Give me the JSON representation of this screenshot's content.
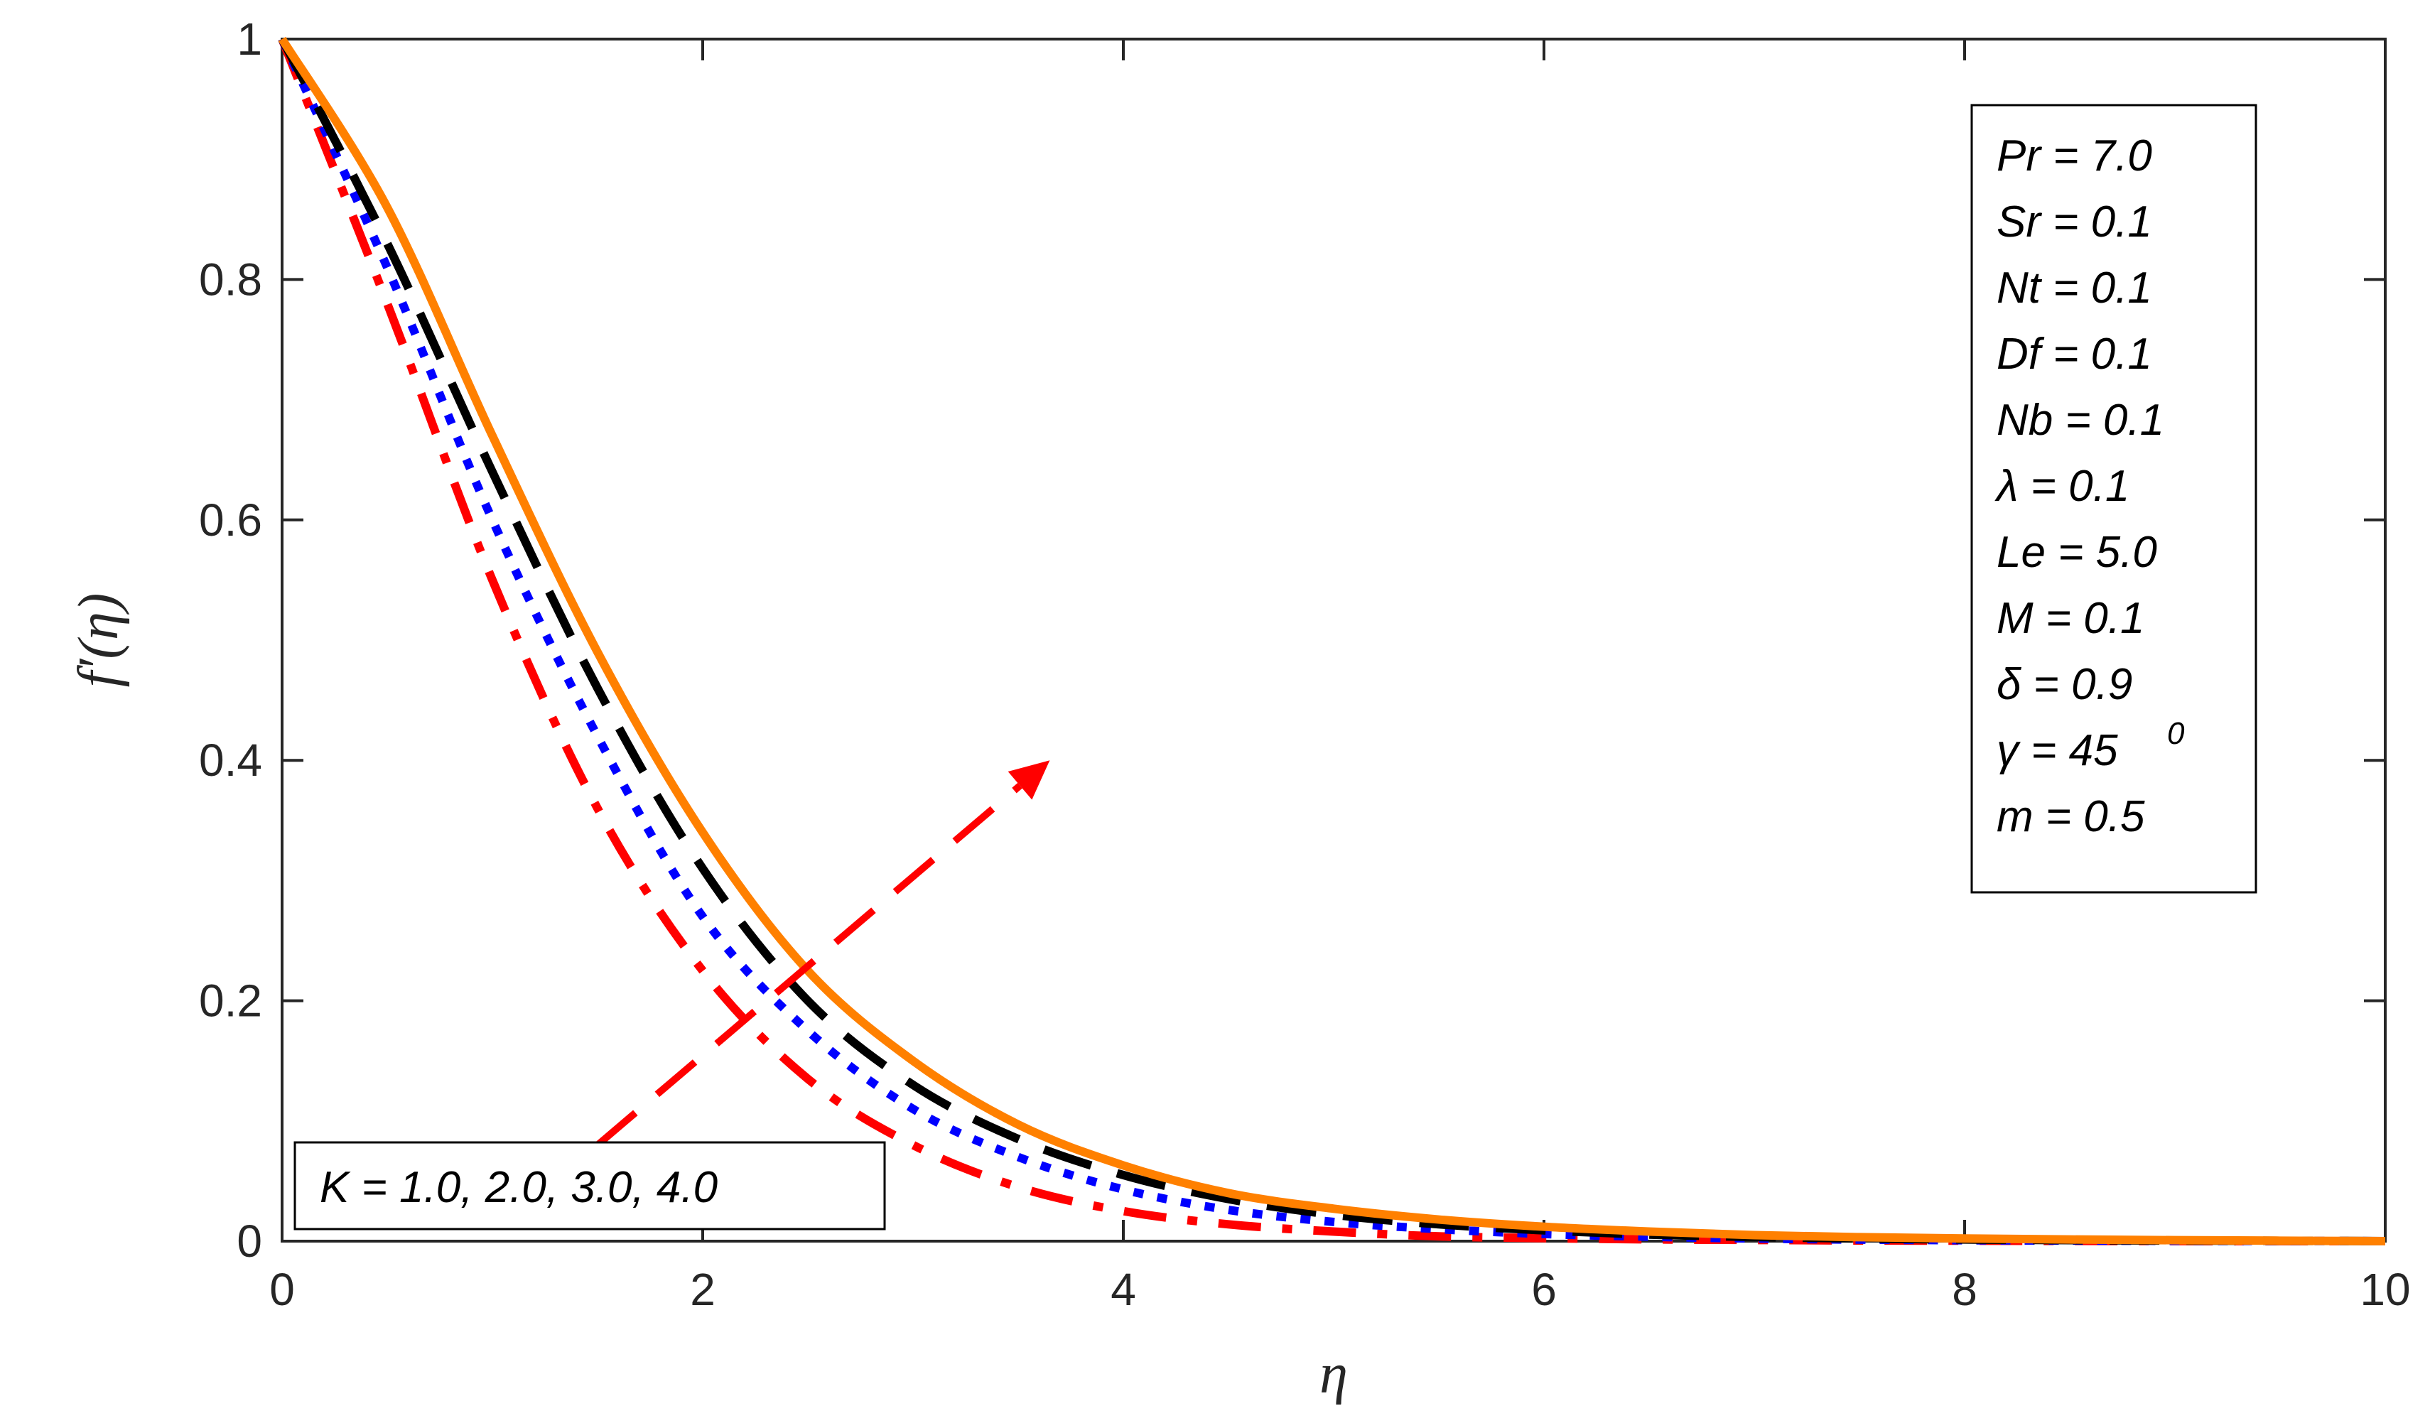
{
  "chart_data": {
    "type": "line",
    "xlabel": "η",
    "ylabel": "f′(η)",
    "xlim": [
      0,
      10
    ],
    "ylim": [
      0,
      1
    ],
    "xticks": [
      "0",
      "2",
      "4",
      "6",
      "8",
      "10"
    ],
    "yticks": [
      "0",
      "0.2",
      "0.4",
      "0.6",
      "0.8",
      "1"
    ],
    "grid": false,
    "x": [
      0,
      0.5,
      1,
      1.5,
      2,
      2.5,
      3,
      3.5,
      4,
      4.5,
      5,
      5.5,
      6,
      6.5,
      7,
      7.5,
      8,
      8.5,
      9,
      9.5,
      10
    ],
    "series": [
      {
        "color": "#ff0000",
        "dash": "dashdot",
        "values": [
          1.0,
          0.78,
          0.55,
          0.36,
          0.225,
          0.135,
          0.08,
          0.045,
          0.025,
          0.014,
          0.008,
          0.004,
          0.0025,
          0.0015,
          0.001,
          0.0006,
          0.0004,
          0.0002,
          0.0001,
          5e-05,
          0.0
        ]
      },
      {
        "color": "#0000ff",
        "dash": "dotted",
        "values": [
          1.0,
          0.81,
          0.6,
          0.42,
          0.27,
          0.175,
          0.11,
          0.07,
          0.043,
          0.026,
          0.016,
          0.01,
          0.006,
          0.0037,
          0.0022,
          0.0013,
          0.0008,
          0.0005,
          0.0003,
          0.0002,
          0.0
        ]
      },
      {
        "color": "#000000",
        "dash": "dashed",
        "values": [
          1.0,
          0.83,
          0.64,
          0.46,
          0.31,
          0.2,
          0.13,
          0.085,
          0.055,
          0.035,
          0.022,
          0.014,
          0.009,
          0.0055,
          0.0035,
          0.0022,
          0.0014,
          0.0009,
          0.0005,
          0.0003,
          0.0
        ]
      },
      {
        "color": "#ff8000",
        "dash": "solid",
        "values": [
          1.0,
          0.86,
          0.67,
          0.49,
          0.34,
          0.225,
          0.15,
          0.097,
          0.063,
          0.04,
          0.027,
          0.018,
          0.012,
          0.008,
          0.005,
          0.0033,
          0.0022,
          0.0014,
          0.0008,
          0.0004,
          0.0
        ]
      }
    ],
    "arrow": {
      "color": "#ff0000",
      "from": [
        1.5,
        0.08
      ],
      "to": [
        3.65,
        0.4
      ]
    },
    "annotation_box": [
      "Pr = 7.0",
      "Sr = 0.1",
      "Nt = 0.1",
      "Df = 0.1",
      "Nb = 0.1",
      "λ = 0.1",
      "Le = 5.0",
      "M = 0.1",
      "δ = 0.9",
      "γ = 45",
      "m = 0.5"
    ],
    "annotation_superscript": "0",
    "k_label": "K = 1.0, 2.0, 3.0, 4.0"
  }
}
